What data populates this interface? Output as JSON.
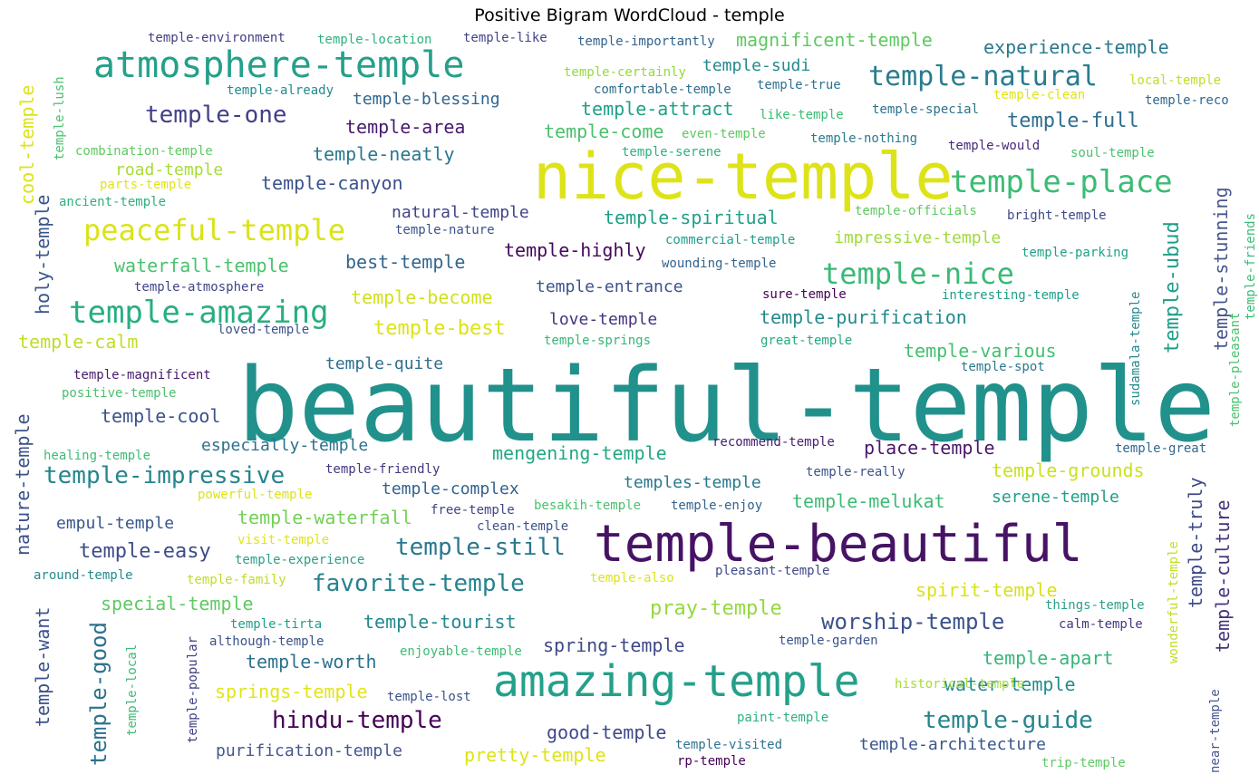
{
  "title": "Positive Bigram WordCloud - temple",
  "palette": {
    "dark_purple": "#471365",
    "indigo": "#3b528b",
    "blue_grey": "#46568f",
    "teal_blue": "#2c728e",
    "teal": "#21918c",
    "sea_green": "#28ae80",
    "green": "#5ec962",
    "lime": "#addc30",
    "yellow": "#e2e418",
    "bright_yellow": "#d6e21e"
  },
  "words": [
    {
      "text": "beautiful-temple",
      "color": "#21918c"
    },
    {
      "text": "nice-temple",
      "color": "#dde318"
    },
    {
      "text": "temple-beautiful",
      "color": "#471365"
    },
    {
      "text": "amazing-temple",
      "color": "#24a08a"
    },
    {
      "text": "atmosphere-temple",
      "color": "#24a08a"
    },
    {
      "text": "temple-place",
      "color": "#3cbc74"
    },
    {
      "text": "peaceful-temple",
      "color": "#dae319"
    },
    {
      "text": "temple-amazing",
      "color": "#28ae80"
    },
    {
      "text": "temple-nice",
      "color": "#3aba76"
    },
    {
      "text": "temple-natural",
      "color": "#287c8e"
    },
    {
      "text": "temple-one",
      "color": "#424086"
    },
    {
      "text": "temple-impressive",
      "color": "#25858e"
    },
    {
      "text": "hindu-temple",
      "color": "#440154"
    },
    {
      "text": "worship-temple",
      "color": "#3b528b"
    },
    {
      "text": "temple-guide",
      "color": "#25858e"
    },
    {
      "text": "temple-still",
      "color": "#2a788e"
    },
    {
      "text": "favorite-temple",
      "color": "#26828e"
    },
    {
      "text": "temple-easy",
      "color": "#3e4c8a"
    },
    {
      "text": "experience-temple",
      "color": "#2a788e"
    },
    {
      "text": "magnificent-temple",
      "color": "#5ec962"
    },
    {
      "text": "temple-sudi",
      "color": "#238a8d"
    },
    {
      "text": "temple-blessing",
      "color": "#31668e"
    },
    {
      "text": "temple-area",
      "color": "#481b6d"
    },
    {
      "text": "temple-attract",
      "color": "#1fa088"
    },
    {
      "text": "temple-full",
      "color": "#2e6e8e"
    },
    {
      "text": "temple-come",
      "color": "#4ac16d"
    },
    {
      "text": "temple-neatly",
      "color": "#2a788e"
    },
    {
      "text": "road-temple",
      "color": "#a8db34"
    },
    {
      "text": "temple-canyon",
      "color": "#3b528b"
    },
    {
      "text": "natural-temple",
      "color": "#414487"
    },
    {
      "text": "temple-spiritual",
      "color": "#1fa088"
    },
    {
      "text": "waterfall-temple",
      "color": "#4ac16d"
    },
    {
      "text": "best-temple",
      "color": "#31668e"
    },
    {
      "text": "temple-highly",
      "color": "#46085c"
    },
    {
      "text": "impressive-temple",
      "color": "#9fda3a"
    },
    {
      "text": "temple-become",
      "color": "#d0e11c"
    },
    {
      "text": "temple-entrance",
      "color": "#3b528b"
    },
    {
      "text": "temple-best",
      "color": "#dde318"
    },
    {
      "text": "love-temple",
      "color": "#46337e"
    },
    {
      "text": "temple-purification",
      "color": "#238a8d"
    },
    {
      "text": "temple-calm",
      "color": "#bddf26"
    },
    {
      "text": "temple-quite",
      "color": "#2e6e8e"
    },
    {
      "text": "temple-various",
      "color": "#44bf70"
    },
    {
      "text": "temple-cool",
      "color": "#3b528b"
    },
    {
      "text": "especially-temple",
      "color": "#2c718e"
    },
    {
      "text": "mengening-temple",
      "color": "#22a785"
    },
    {
      "text": "place-temple",
      "color": "#481769"
    },
    {
      "text": "temple-grounds",
      "color": "#cae11f"
    },
    {
      "text": "temples-temple",
      "color": "#2a788e"
    },
    {
      "text": "temple-complex",
      "color": "#33638d"
    },
    {
      "text": "temple-melukat",
      "color": "#3cbc74"
    },
    {
      "text": "serene-temple",
      "color": "#1f9e89"
    },
    {
      "text": "empul-temple",
      "color": "#39558c"
    },
    {
      "text": "temple-waterfall",
      "color": "#73d056"
    },
    {
      "text": "special-temple",
      "color": "#5ec962"
    },
    {
      "text": "pray-temple",
      "color": "#95d840"
    },
    {
      "text": "spirit-temple",
      "color": "#d8e219"
    },
    {
      "text": "temple-tourist",
      "color": "#23898e"
    },
    {
      "text": "spring-temple",
      "color": "#3f4889"
    },
    {
      "text": "temple-worth",
      "color": "#2c728e"
    },
    {
      "text": "temple-apart",
      "color": "#35b779"
    },
    {
      "text": "water-temple",
      "color": "#228c8d"
    },
    {
      "text": "springs-temple",
      "color": "#e2e418"
    },
    {
      "text": "good-temple",
      "color": "#3e4989"
    },
    {
      "text": "purification-temple",
      "color": "#46568f"
    },
    {
      "text": "pretty-temple",
      "color": "#dde318"
    },
    {
      "text": "temple-architecture",
      "color": "#39568c"
    },
    {
      "text": "temple-environment",
      "color": "#424086"
    },
    {
      "text": "temple-location",
      "color": "#2db27d"
    },
    {
      "text": "temple-like",
      "color": "#414487"
    },
    {
      "text": "temple-importantly",
      "color": "#33638d"
    },
    {
      "text": "temple-certainly",
      "color": "#95d840"
    },
    {
      "text": "comfortable-temple",
      "color": "#2e6e8e"
    },
    {
      "text": "temple-true",
      "color": "#2c728e"
    },
    {
      "text": "temple-already",
      "color": "#238a8d"
    },
    {
      "text": "like-temple",
      "color": "#3cbc74"
    },
    {
      "text": "temple-special",
      "color": "#2c728e"
    },
    {
      "text": "temple-clean",
      "color": "#dde318"
    },
    {
      "text": "local-temple",
      "color": "#bddf26"
    },
    {
      "text": "temple-reco",
      "color": "#31688e"
    },
    {
      "text": "even-temple",
      "color": "#5ec962"
    },
    {
      "text": "temple-nothing",
      "color": "#287c8e"
    },
    {
      "text": "temple-would",
      "color": "#482878"
    },
    {
      "text": "soul-temple",
      "color": "#4ac16d"
    },
    {
      "text": "temple-serene",
      "color": "#2db27d"
    },
    {
      "text": "combination-temple",
      "color": "#5ec962"
    },
    {
      "text": "parts-temple",
      "color": "#e2e418"
    },
    {
      "text": "ancient-temple",
      "color": "#2db27d"
    },
    {
      "text": "temple-nature",
      "color": "#3b528b"
    },
    {
      "text": "commercial-temple",
      "color": "#1f9e89"
    },
    {
      "text": "temple-officials",
      "color": "#5ec962"
    },
    {
      "text": "bright-temple",
      "color": "#3e4989"
    },
    {
      "text": "temple-parking",
      "color": "#1fa088"
    },
    {
      "text": "wounding-temple",
      "color": "#33638d"
    },
    {
      "text": "temple-atmosphere",
      "color": "#414487"
    },
    {
      "text": "sure-temple",
      "color": "#440154"
    },
    {
      "text": "interesting-temple",
      "color": "#1f9e89"
    },
    {
      "text": "loved-temple",
      "color": "#3b528b"
    },
    {
      "text": "temple-springs",
      "color": "#35b779"
    },
    {
      "text": "great-temple",
      "color": "#24aa83"
    },
    {
      "text": "temple-spot",
      "color": "#2a788e"
    },
    {
      "text": "temple-magnificent",
      "color": "#481a6c"
    },
    {
      "text": "positive-temple",
      "color": "#4ac16d"
    },
    {
      "text": "healing-temple",
      "color": "#3cbc74"
    },
    {
      "text": "recommend-temple",
      "color": "#482071"
    },
    {
      "text": "temple-friendly",
      "color": "#453781"
    },
    {
      "text": "temple-really",
      "color": "#3b528b"
    },
    {
      "text": "temple-great",
      "color": "#31688e"
    },
    {
      "text": "powerful-temple",
      "color": "#dde318"
    },
    {
      "text": "free-temple",
      "color": "#414487"
    },
    {
      "text": "besakih-temple",
      "color": "#4ac16d"
    },
    {
      "text": "temple-enjoy",
      "color": "#33638d"
    },
    {
      "text": "clean-temple",
      "color": "#3b528b"
    },
    {
      "text": "visit-temple",
      "color": "#e2e418"
    },
    {
      "text": "temple-experience",
      "color": "#2c9e88"
    },
    {
      "text": "around-temple",
      "color": "#238a8d"
    },
    {
      "text": "temple-family",
      "color": "#bddf26"
    },
    {
      "text": "temple-also",
      "color": "#dde318"
    },
    {
      "text": "pleasant-temple",
      "color": "#3e4989"
    },
    {
      "text": "things-temple",
      "color": "#2c9e88"
    },
    {
      "text": "temple-tirta",
      "color": "#1fa088"
    },
    {
      "text": "calm-temple",
      "color": "#453781"
    },
    {
      "text": "although-temple",
      "color": "#3b528b"
    },
    {
      "text": "enjoyable-temple",
      "color": "#3cbc74"
    },
    {
      "text": "temple-garden",
      "color": "#3b528b"
    },
    {
      "text": "temple-lost",
      "color": "#3b528b"
    },
    {
      "text": "historical-temple",
      "color": "#a8db34"
    },
    {
      "text": "paint-temple",
      "color": "#2db27d"
    },
    {
      "text": "temple-visited",
      "color": "#2c728e"
    },
    {
      "text": "rp-temple",
      "color": "#440154"
    },
    {
      "text": "trip-temple",
      "color": "#5ec962"
    },
    {
      "text": "cool-temple",
      "color": "#dde318"
    },
    {
      "text": "temple-lush",
      "color": "#4ac16d"
    },
    {
      "text": "holy-temple",
      "color": "#39558c"
    },
    {
      "text": "nature-temple",
      "color": "#3b528b"
    },
    {
      "text": "temple-want",
      "color": "#3b528b"
    },
    {
      "text": "temple-good",
      "color": "#2c728e"
    },
    {
      "text": "temple-local",
      "color": "#3cbc74"
    },
    {
      "text": "temple-popular",
      "color": "#424086"
    },
    {
      "text": "temple-ubud",
      "color": "#1f9e89"
    },
    {
      "text": "temple-stunning",
      "color": "#46568f"
    },
    {
      "text": "temple-pleasant",
      "color": "#4ac16d"
    },
    {
      "text": "temple-friends",
      "color": "#3cbc74"
    },
    {
      "text": "sudamala-temple",
      "color": "#238a8d"
    },
    {
      "text": "temple-truly",
      "color": "#3e4989"
    },
    {
      "text": "temple-culture",
      "color": "#46337e"
    },
    {
      "text": "wonderful-temple",
      "color": "#bddf26"
    },
    {
      "text": "near-temple",
      "color": "#46568f"
    }
  ]
}
